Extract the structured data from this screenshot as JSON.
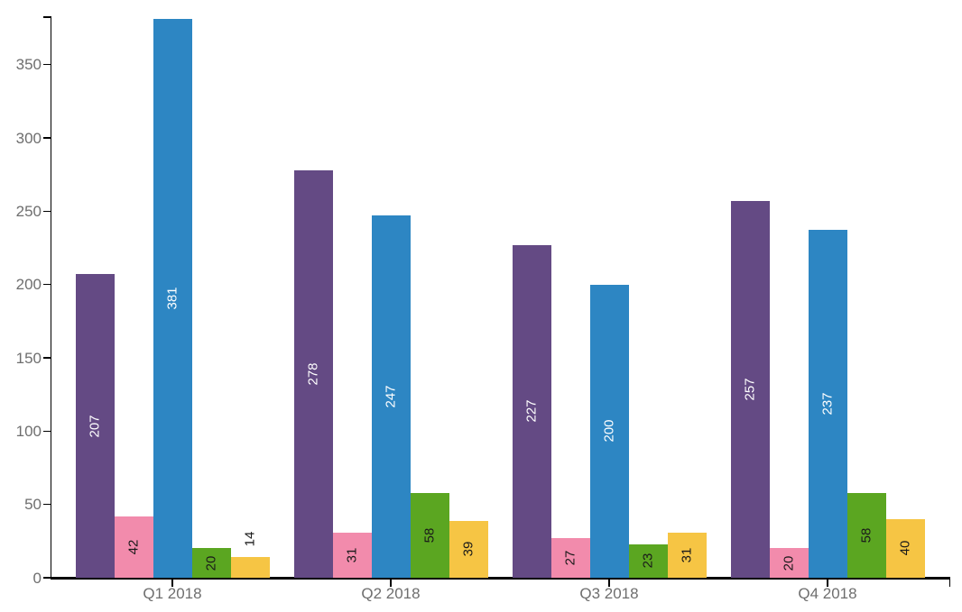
{
  "chart_data": {
    "type": "bar",
    "title": "",
    "xlabel": "",
    "ylabel": "",
    "grid": false,
    "legend": "none",
    "categories": [
      "Q1 2018",
      "Q2 2018",
      "Q3 2018",
      "Q4 2018"
    ],
    "series": [
      {
        "name": "purple-series",
        "color": "#644A84",
        "label_color": "#FFFFFF",
        "values": [
          207,
          278,
          227,
          257
        ]
      },
      {
        "name": "pink-series",
        "color": "#F28BAC",
        "label_color": "#1A1A1A",
        "values": [
          42,
          31,
          27,
          20
        ]
      },
      {
        "name": "blue-series",
        "color": "#2D86C3",
        "label_color": "#FFFFFF",
        "values": [
          381,
          247,
          200,
          237
        ]
      },
      {
        "name": "green-series",
        "color": "#5BA621",
        "label_color": "#1A1A1A",
        "values": [
          20,
          58,
          23,
          58
        ]
      },
      {
        "name": "yellow-series",
        "color": "#F6C544",
        "label_color": "#1A1A1A",
        "values": [
          14,
          39,
          31,
          40
        ]
      }
    ],
    "y_ticks": [
      0,
      50,
      100,
      150,
      200,
      250,
      300,
      350
    ],
    "y_max": 383,
    "ylim": [
      0,
      383
    ],
    "bar_label_style": "rotated 90deg CCW, centered inside bar; placed above bar in black when bar too short",
    "axis_color": "#000000",
    "tick_label_color": "#6E6E6E"
  }
}
